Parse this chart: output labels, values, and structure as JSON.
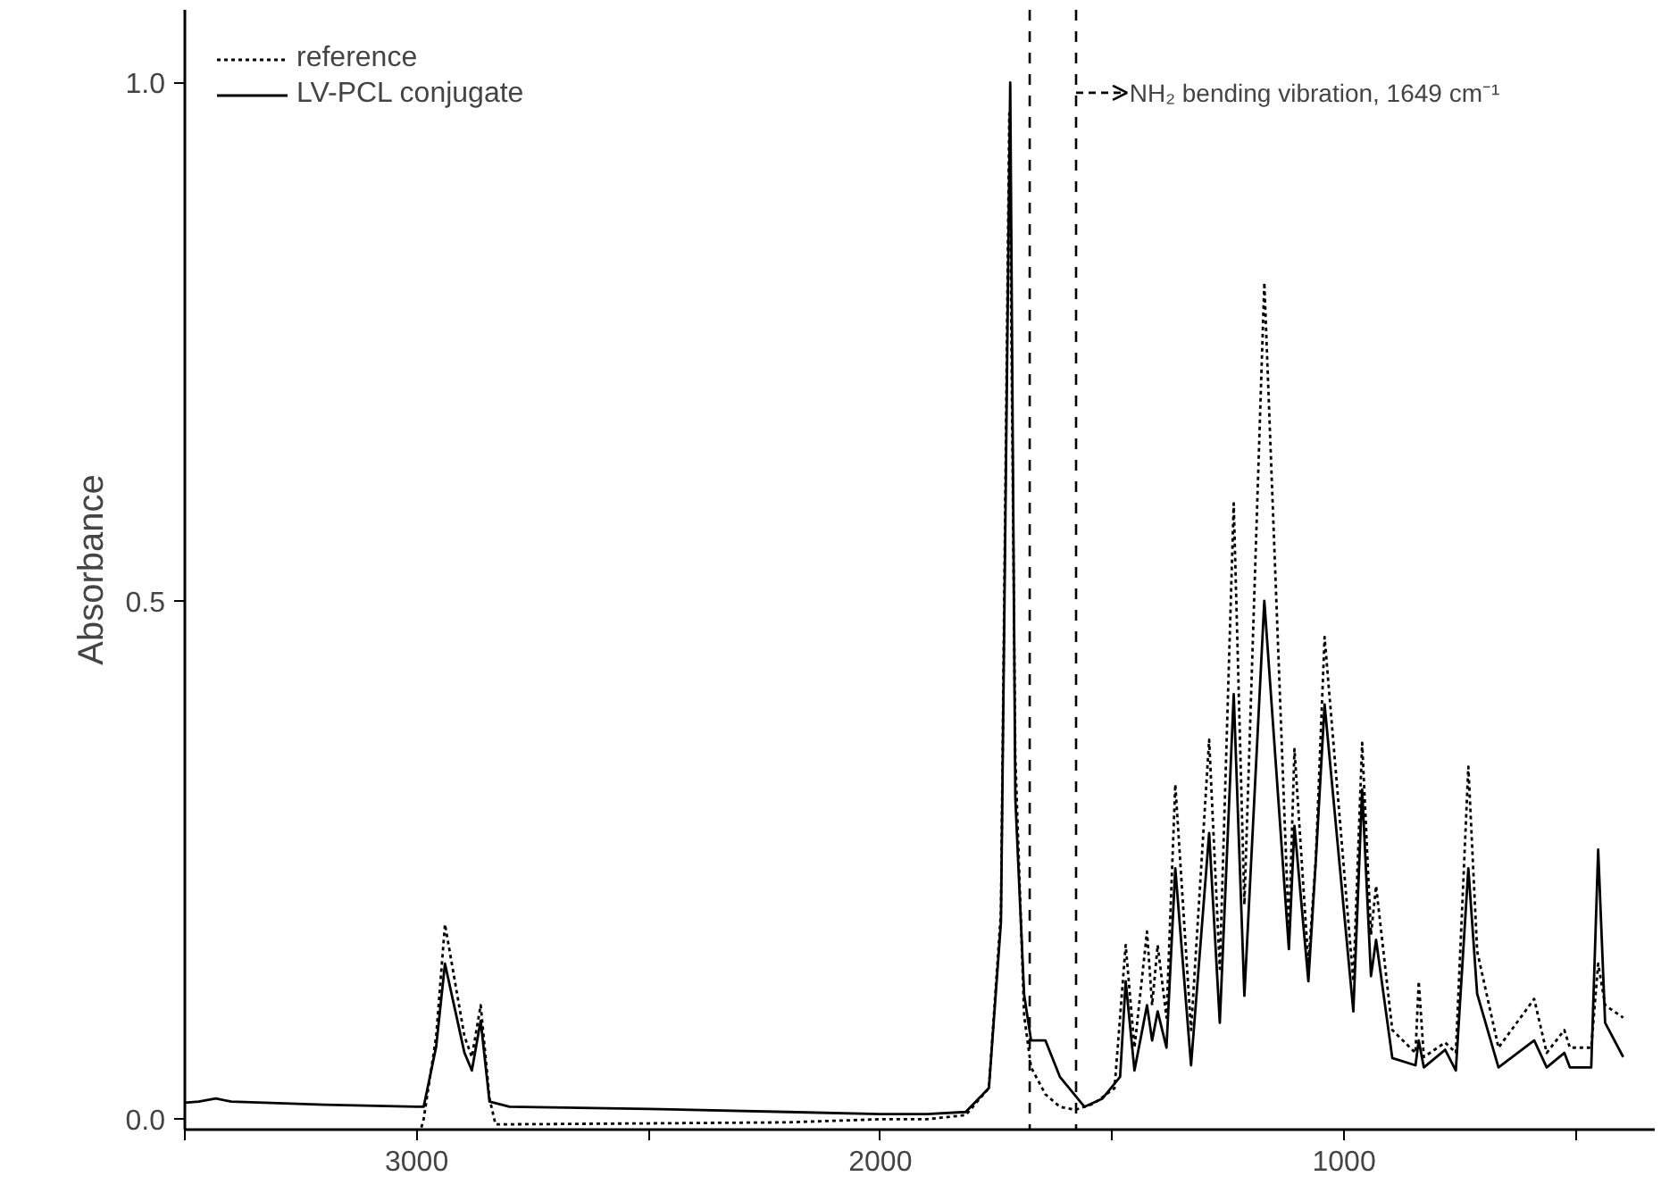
{
  "chart_data": {
    "type": "line",
    "ylabel": "Absorbance",
    "xlim": [
      3500,
      330
    ],
    "ylim": [
      -0.01,
      1.07
    ],
    "xticks": [
      {
        "value": 3500,
        "label": null
      },
      3000,
      {
        "value": 2500,
        "label": null
      },
      2000,
      {
        "value": 1500,
        "label": null
      },
      1000,
      {
        "value": 500,
        "label": null
      }
    ],
    "yticks": [
      {
        "value": 0,
        "label": "0.0"
      },
      {
        "value": 0.5,
        "label": "0.5"
      },
      {
        "value": 1,
        "label": "1.0"
      }
    ],
    "legend": "top left",
    "grid": false,
    "series": [
      {
        "name": "reference",
        "color": "#000000",
        "line_style": "dotted",
        "x": [
          2990,
          2985,
          2958,
          2939,
          2897,
          2881,
          2862,
          2843,
          2830,
          2500,
          2200,
          2000,
          1900,
          1816,
          1766,
          1740,
          1722,
          1709,
          1690,
          1675,
          1644,
          1613,
          1580,
          1540,
          1495,
          1471,
          1452,
          1425,
          1414,
          1402,
          1383,
          1364,
          1330,
          1291,
          1268,
          1238,
          1215,
          1172,
          1119,
          1107,
          1077,
          1061,
          1042,
          980,
          961,
          942,
          931,
          896,
          846,
          839,
          828,
          782,
          759,
          732,
          713,
          667,
          590,
          563,
          525,
          513,
          467,
          452,
          437,
          398
        ],
        "values": [
          -0.008,
          0.0,
          0.08,
          0.188,
          0.08,
          0.06,
          0.11,
          0.02,
          -0.005,
          -0.004,
          -0.003,
          0.0,
          0.0,
          0.004,
          0.03,
          0.2,
          0.97,
          0.35,
          0.1,
          0.05,
          0.024,
          0.012,
          0.009,
          0.015,
          0.03,
          0.168,
          0.069,
          0.181,
          0.11,
          0.168,
          0.098,
          0.323,
          0.086,
          0.366,
          0.145,
          0.594,
          0.207,
          0.807,
          0.18,
          0.357,
          0.15,
          0.25,
          0.465,
          0.133,
          0.363,
          0.178,
          0.225,
          0.086,
          0.064,
          0.133,
          0.06,
          0.074,
          0.064,
          0.34,
          0.162,
          0.069,
          0.116,
          0.064,
          0.086,
          0.069,
          0.069,
          0.15,
          0.11,
          0.098
        ]
      },
      {
        "name": "LV-PCL conjugate",
        "color": "#000000",
        "line_style": "solid",
        "x": [
          3500,
          3470,
          3433,
          3400,
          3200,
          3000,
          2985,
          2958,
          2939,
          2897,
          2881,
          2862,
          2843,
          2800,
          2500,
          2200,
          2000,
          1900,
          1816,
          1766,
          1740,
          1720,
          1709,
          1690,
          1675,
          1644,
          1613,
          1560,
          1521,
          1483,
          1471,
          1452,
          1425,
          1414,
          1402,
          1383,
          1364,
          1330,
          1291,
          1268,
          1238,
          1215,
          1172,
          1119,
          1107,
          1077,
          1061,
          1042,
          980,
          961,
          942,
          931,
          896,
          846,
          839,
          828,
          782,
          759,
          732,
          713,
          667,
          590,
          563,
          525,
          513,
          467,
          452,
          437,
          398
        ],
        "values": [
          0.016,
          0.017,
          0.02,
          0.017,
          0.014,
          0.012,
          0.012,
          0.07,
          0.15,
          0.064,
          0.047,
          0.095,
          0.017,
          0.012,
          0.01,
          0.007,
          0.005,
          0.005,
          0.007,
          0.03,
          0.19,
          1.0,
          0.31,
          0.12,
          0.076,
          0.076,
          0.041,
          0.012,
          0.02,
          0.041,
          0.133,
          0.047,
          0.11,
          0.076,
          0.104,
          0.069,
          0.242,
          0.052,
          0.276,
          0.093,
          0.41,
          0.119,
          0.5,
          0.164,
          0.283,
          0.133,
          0.249,
          0.4,
          0.104,
          0.318,
          0.138,
          0.173,
          0.059,
          0.052,
          0.076,
          0.05,
          0.067,
          0.047,
          0.242,
          0.121,
          0.05,
          0.076,
          0.05,
          0.064,
          0.05,
          0.05,
          0.26,
          0.093,
          0.06
        ]
      }
    ],
    "ref_lines": [
      {
        "axis": "x",
        "value": 1678,
        "line_style": "dashed",
        "color": "#000000"
      },
      {
        "axis": "x",
        "value": 1578,
        "line_style": "dashed",
        "color": "#000000"
      }
    ],
    "annotations": [
      {
        "text": "NH₂ bending vibration, 1649 cm⁻¹",
        "x": 1578,
        "y": 0.99
      }
    ]
  }
}
